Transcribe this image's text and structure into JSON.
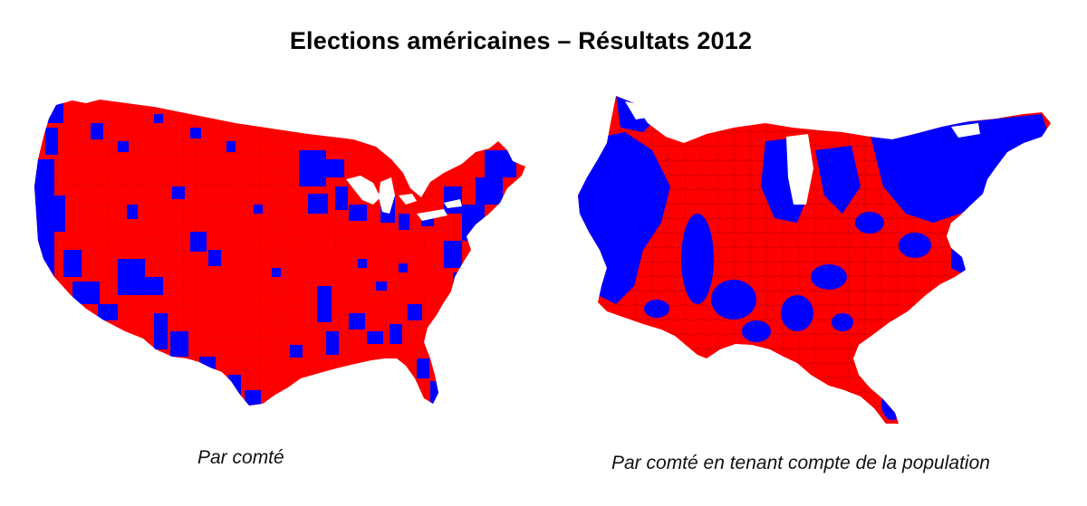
{
  "title": "Elections américaines – Résultats 2012",
  "maps": [
    {
      "caption": "Par comté"
    },
    {
      "caption": "Par comté en tenant compte de la population"
    }
  ],
  "colors": {
    "republican": "#ff0000",
    "democrat": "#0000ff",
    "border": "#8b0000",
    "background": "#ffffff"
  }
}
